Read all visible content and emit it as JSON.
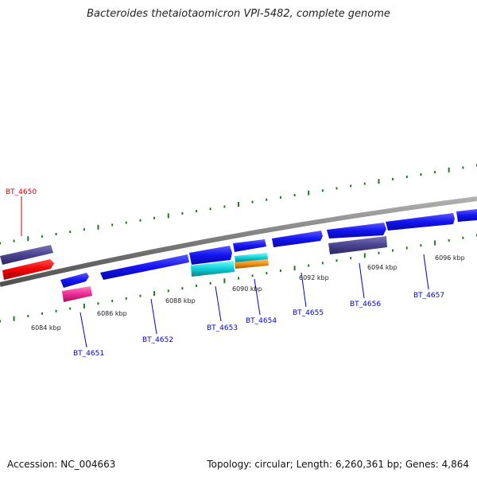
{
  "title": "Bacteroides thetaiotaomicron VPI-5482, complete genome",
  "footer": {
    "accession": "Accession: NC_004663",
    "summary": "Topology: circular; Length: 6,260,361 bp; Genes: 4,864"
  },
  "colors": {
    "backbone": "#8a8a8a",
    "tick": "#1f7a1f",
    "label_blue": "#0000cc",
    "label_red": "#cc0000"
  },
  "scale_labels": [
    "6084 kbp",
    "6086 kbp",
    "6088 kbp",
    "6090 kbp",
    "6092 kbp",
    "6094 kbp",
    "6096 kbp"
  ],
  "genes": [
    {
      "id": "BT_4650",
      "highlight": true
    },
    {
      "id": "BT_4651"
    },
    {
      "id": "BT_4652"
    },
    {
      "id": "BT_4653"
    },
    {
      "id": "BT_4654"
    },
    {
      "id": "BT_4655"
    },
    {
      "id": "BT_4656"
    },
    {
      "id": "BT_4657"
    }
  ]
}
